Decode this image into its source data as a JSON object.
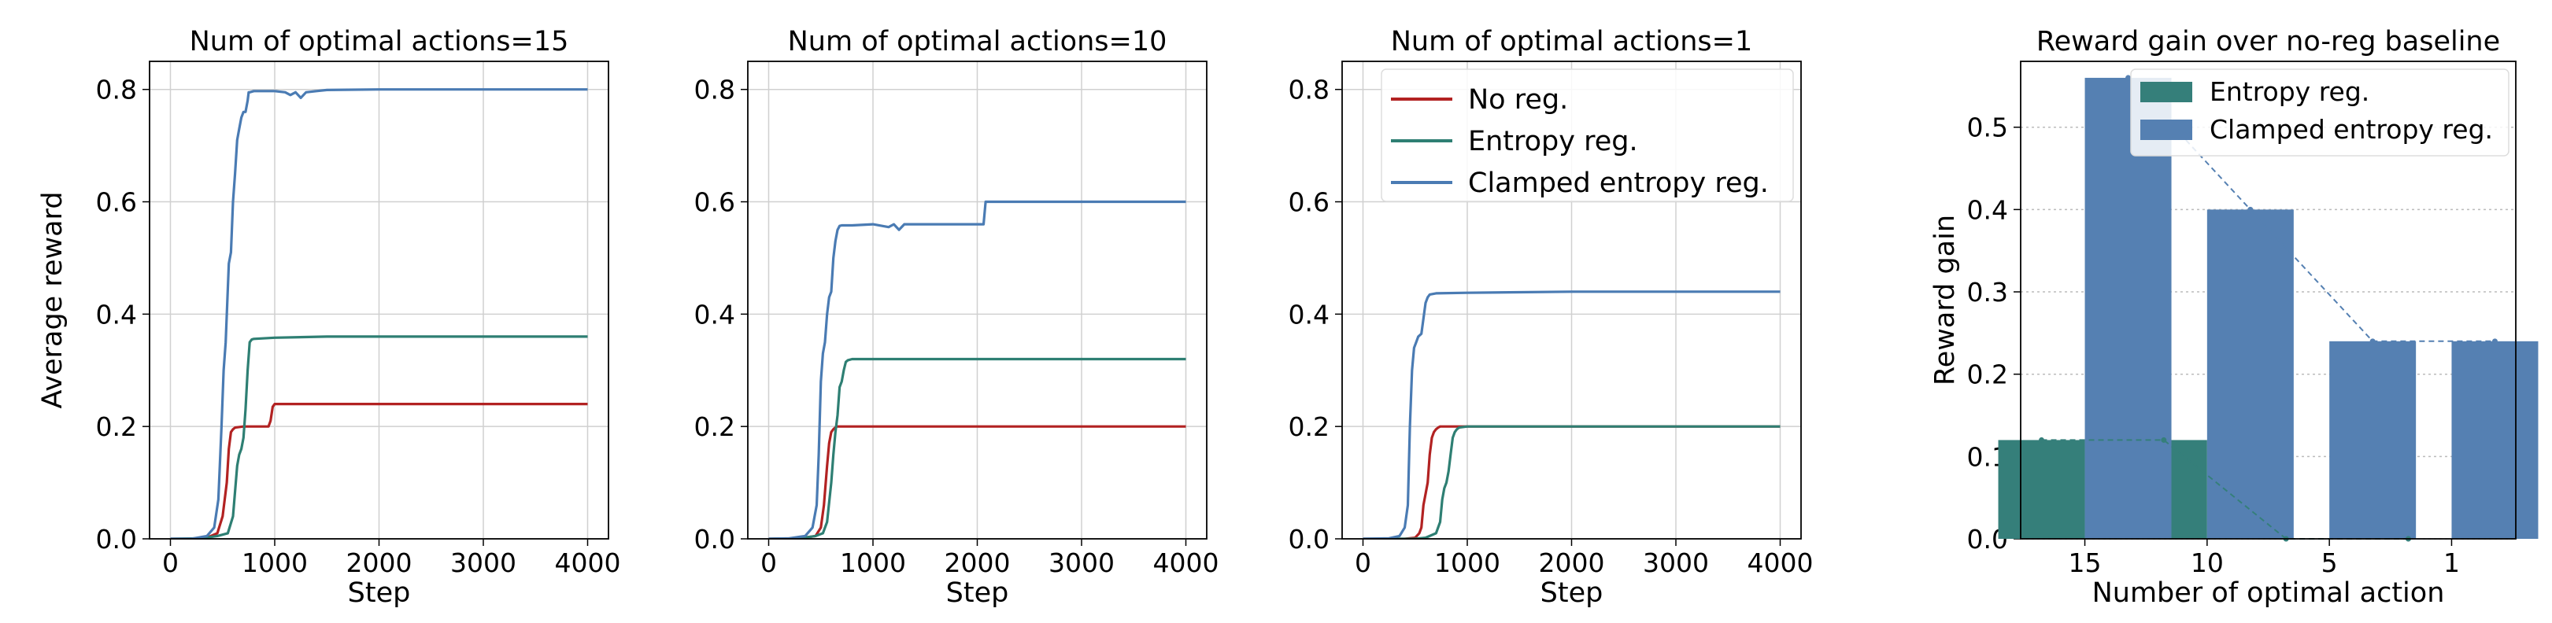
{
  "figure": {
    "background": "#ffffff",
    "grid_color": "#d0d0d0"
  },
  "colors": {
    "no_reg": "#b22222",
    "entropy": "#2e7f73",
    "clamped": "#4a7bb3",
    "bar_entropy": "#357f7a",
    "bar_clamped": "#5580b2"
  },
  "chart_data": [
    {
      "type": "line",
      "title": "Num of optimal actions=15",
      "xlabel": "Step",
      "ylabel": "Average reward",
      "xlim": [
        -200,
        4200
      ],
      "ylim": [
        0,
        0.85
      ],
      "xticks": [
        0,
        1000,
        2000,
        3000,
        4000
      ],
      "xtick_labels": [
        "0",
        "1000",
        "2000",
        "3000",
        "4000"
      ],
      "yticks": [
        0,
        0.2,
        0.4,
        0.6,
        0.8
      ],
      "ytick_labels": [
        "0.0",
        "0.2",
        "0.4",
        "0.6",
        "0.8"
      ],
      "grid": true,
      "series": [
        {
          "key": "no_reg",
          "x": [
            0,
            200,
            350,
            450,
            500,
            540,
            560,
            580,
            600,
            620,
            700,
            800,
            900,
            940,
            960,
            980,
            1000,
            1200,
            2000,
            4000
          ],
          "y": [
            0,
            0,
            0.002,
            0.01,
            0.04,
            0.1,
            0.16,
            0.19,
            0.195,
            0.198,
            0.2,
            0.2,
            0.2,
            0.2,
            0.21,
            0.235,
            0.24,
            0.24,
            0.24,
            0.24
          ]
        },
        {
          "key": "entropy",
          "x": [
            0,
            300,
            450,
            550,
            600,
            640,
            660,
            680,
            700,
            720,
            740,
            760,
            780,
            800,
            1000,
            1500,
            2000,
            4000
          ],
          "y": [
            0,
            0.001,
            0.005,
            0.01,
            0.04,
            0.13,
            0.15,
            0.16,
            0.18,
            0.23,
            0.3,
            0.35,
            0.355,
            0.356,
            0.358,
            0.36,
            0.36,
            0.36
          ]
        },
        {
          "key": "clamped",
          "x": [
            0,
            200,
            350,
            420,
            460,
            490,
            510,
            530,
            560,
            580,
            600,
            620,
            640,
            660,
            680,
            700,
            720,
            740,
            750,
            760,
            800,
            1000,
            1100,
            1150,
            1200,
            1250,
            1300,
            1400,
            1500,
            2000,
            4000
          ],
          "y": [
            0,
            0,
            0.005,
            0.02,
            0.07,
            0.2,
            0.3,
            0.35,
            0.49,
            0.51,
            0.6,
            0.65,
            0.71,
            0.73,
            0.75,
            0.76,
            0.76,
            0.78,
            0.795,
            0.795,
            0.797,
            0.797,
            0.795,
            0.79,
            0.795,
            0.785,
            0.795,
            0.797,
            0.799,
            0.8,
            0.8
          ]
        }
      ]
    },
    {
      "type": "line",
      "title": "Num of optimal actions=10",
      "xlabel": "Step",
      "ylabel": "",
      "xlim": [
        -200,
        4200
      ],
      "ylim": [
        0,
        0.85
      ],
      "xticks": [
        0,
        1000,
        2000,
        3000,
        4000
      ],
      "xtick_labels": [
        "0",
        "1000",
        "2000",
        "3000",
        "4000"
      ],
      "yticks": [
        0,
        0.2,
        0.4,
        0.6,
        0.8
      ],
      "ytick_labels": [
        "0.0",
        "0.2",
        "0.4",
        "0.6",
        "0.8"
      ],
      "grid": true,
      "series": [
        {
          "key": "no_reg",
          "x": [
            0,
            300,
            450,
            500,
            530,
            560,
            580,
            600,
            620,
            650,
            700,
            1000,
            2000,
            4000
          ],
          "y": [
            0,
            0.001,
            0.005,
            0.02,
            0.06,
            0.13,
            0.17,
            0.19,
            0.195,
            0.2,
            0.2,
            0.2,
            0.2,
            0.2
          ]
        },
        {
          "key": "entropy",
          "x": [
            0,
            300,
            450,
            520,
            560,
            600,
            620,
            640,
            660,
            680,
            700,
            720,
            740,
            760,
            800,
            1000,
            2000,
            4000
          ],
          "y": [
            0,
            0.001,
            0.005,
            0.01,
            0.03,
            0.1,
            0.15,
            0.19,
            0.22,
            0.27,
            0.28,
            0.3,
            0.315,
            0.318,
            0.32,
            0.32,
            0.32,
            0.32
          ]
        },
        {
          "key": "clamped",
          "x": [
            0,
            200,
            350,
            420,
            460,
            480,
            500,
            520,
            540,
            560,
            580,
            600,
            620,
            640,
            660,
            680,
            700,
            800,
            1000,
            1150,
            1200,
            1250,
            1300,
            2000,
            2060,
            2080,
            2100,
            4000
          ],
          "y": [
            0,
            0.001,
            0.005,
            0.02,
            0.06,
            0.15,
            0.28,
            0.33,
            0.35,
            0.4,
            0.43,
            0.44,
            0.5,
            0.53,
            0.55,
            0.557,
            0.558,
            0.558,
            0.56,
            0.555,
            0.56,
            0.55,
            0.56,
            0.56,
            0.56,
            0.6,
            0.6,
            0.6
          ]
        }
      ]
    },
    {
      "type": "line",
      "title": "Num of optimal actions=1",
      "xlabel": "Step",
      "ylabel": "",
      "xlim": [
        -200,
        4200
      ],
      "ylim": [
        0,
        0.85
      ],
      "xticks": [
        0,
        1000,
        2000,
        3000,
        4000
      ],
      "xtick_labels": [
        "0",
        "1000",
        "2000",
        "3000",
        "4000"
      ],
      "yticks": [
        0,
        0.2,
        0.4,
        0.6,
        0.8
      ],
      "ytick_labels": [
        "0.0",
        "0.2",
        "0.4",
        "0.6",
        "0.8"
      ],
      "grid": true,
      "legend": {
        "placement": "top-right",
        "entries": [
          {
            "key": "no_reg",
            "label": "No reg."
          },
          {
            "key": "entropy",
            "label": "Entropy reg."
          },
          {
            "key": "clamped",
            "label": "Clamped entropy reg."
          }
        ]
      },
      "series": [
        {
          "key": "no_reg",
          "x": [
            0,
            400,
            500,
            540,
            560,
            580,
            600,
            620,
            640,
            660,
            680,
            700,
            720,
            740,
            800,
            1000,
            2000,
            4000
          ],
          "y": [
            0,
            0,
            0.002,
            0.01,
            0.02,
            0.06,
            0.08,
            0.1,
            0.15,
            0.18,
            0.19,
            0.195,
            0.198,
            0.2,
            0.2,
            0.2,
            0.2,
            0.2
          ]
        },
        {
          "key": "entropy",
          "x": [
            0,
            500,
            600,
            700,
            740,
            760,
            780,
            800,
            820,
            840,
            860,
            880,
            900,
            920,
            1000,
            2000,
            4000
          ],
          "y": [
            0,
            0,
            0.002,
            0.01,
            0.03,
            0.07,
            0.09,
            0.1,
            0.12,
            0.15,
            0.18,
            0.19,
            0.195,
            0.198,
            0.2,
            0.2,
            0.2
          ]
        },
        {
          "key": "clamped",
          "x": [
            0,
            250,
            350,
            400,
            430,
            450,
            470,
            490,
            510,
            530,
            560,
            600,
            620,
            640,
            700,
            1000,
            2000,
            4000
          ],
          "y": [
            0,
            0.001,
            0.005,
            0.02,
            0.06,
            0.2,
            0.3,
            0.34,
            0.35,
            0.36,
            0.365,
            0.42,
            0.43,
            0.435,
            0.437,
            0.438,
            0.44,
            0.44
          ]
        }
      ]
    },
    {
      "type": "bar",
      "title": "Reward gain over no-reg baseline",
      "xlabel": "Number of optimal action",
      "ylabel": "Reward gain",
      "categories": [
        "15",
        "10",
        "5",
        "1"
      ],
      "ylim": [
        0,
        0.58
      ],
      "yticks": [
        0,
        0.1,
        0.2,
        0.3,
        0.4,
        0.5
      ],
      "ytick_labels": [
        "0.0",
        "0.1",
        "0.2",
        "0.3",
        "0.4",
        "0.5"
      ],
      "grid": true,
      "legend": {
        "placement": "top-right",
        "entries": [
          {
            "key": "bar_entropy",
            "label": "Entropy reg."
          },
          {
            "key": "bar_clamped",
            "label": "Clamped entropy reg."
          }
        ]
      },
      "series": [
        {
          "key": "bar_entropy",
          "name": "Entropy reg.",
          "values": [
            0.12,
            0.12,
            0,
            0
          ]
        },
        {
          "key": "bar_clamped",
          "name": "Clamped entropy reg.",
          "values": [
            0.56,
            0.4,
            0.24,
            0.24
          ]
        }
      ]
    }
  ]
}
